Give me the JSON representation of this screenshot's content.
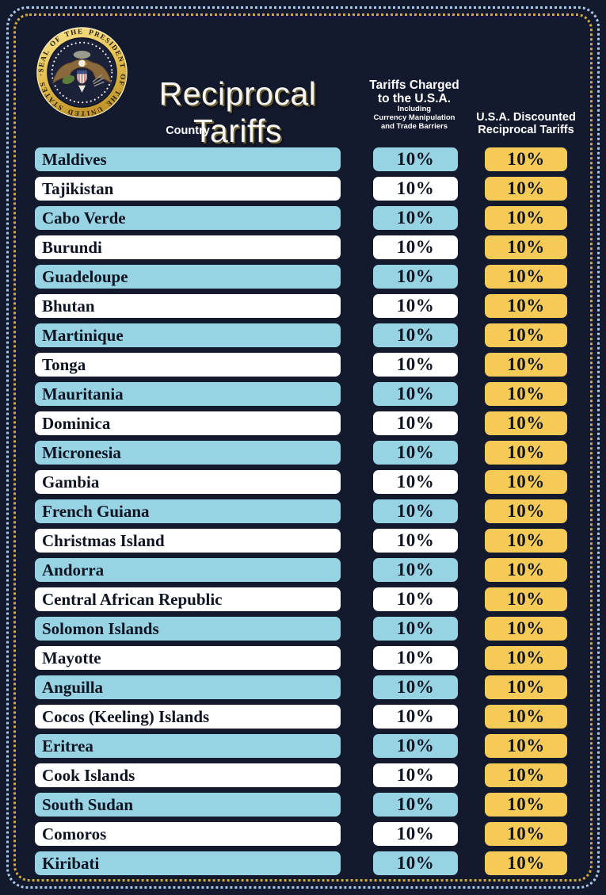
{
  "title": "Reciprocal Tariffs",
  "seal": {
    "name": "Seal of the President of the United States",
    "ring_text": "SEAL OF THE PRESIDENT OF THE UNITED STATES · · ·"
  },
  "table": {
    "header": {
      "country": "Country",
      "charged_line1": "Tariffs Charged",
      "charged_line2": "to the U.S.A.",
      "charged_sub1": "Including",
      "charged_sub2": "Currency Manipulation",
      "charged_sub3": "and Trade Barriers",
      "discounted_line1": "U.S.A. Discounted",
      "discounted_line2": "Reciprocal Tariffs"
    }
  },
  "chart_data": {
    "type": "table",
    "title": "Reciprocal Tariffs",
    "columns": [
      "Country",
      "Tariffs Charged to the U.S.A. Including Currency Manipulation and Trade Barriers",
      "U.S.A. Discounted Reciprocal Tariffs"
    ],
    "rows": [
      [
        "Maldives",
        "10%",
        "10%"
      ],
      [
        "Tajikistan",
        "10%",
        "10%"
      ],
      [
        "Cabo Verde",
        "10%",
        "10%"
      ],
      [
        "Burundi",
        "10%",
        "10%"
      ],
      [
        "Guadeloupe",
        "10%",
        "10%"
      ],
      [
        "Bhutan",
        "10%",
        "10%"
      ],
      [
        "Martinique",
        "10%",
        "10%"
      ],
      [
        "Tonga",
        "10%",
        "10%"
      ],
      [
        "Mauritania",
        "10%",
        "10%"
      ],
      [
        "Dominica",
        "10%",
        "10%"
      ],
      [
        "Micronesia",
        "10%",
        "10%"
      ],
      [
        "Gambia",
        "10%",
        "10%"
      ],
      [
        "French Guiana",
        "10%",
        "10%"
      ],
      [
        "Christmas Island",
        "10%",
        "10%"
      ],
      [
        "Andorra",
        "10%",
        "10%"
      ],
      [
        "Central African Republic",
        "10%",
        "10%"
      ],
      [
        "Solomon Islands",
        "10%",
        "10%"
      ],
      [
        "Mayotte",
        "10%",
        "10%"
      ],
      [
        "Anguilla",
        "10%",
        "10%"
      ],
      [
        "Cocos (Keeling) Islands",
        "10%",
        "10%"
      ],
      [
        "Eritrea",
        "10%",
        "10%"
      ],
      [
        "Cook Islands",
        "10%",
        "10%"
      ],
      [
        "South Sudan",
        "10%",
        "10%"
      ],
      [
        "Comoros",
        "10%",
        "10%"
      ],
      [
        "Kiribati",
        "10%",
        "10%"
      ]
    ]
  },
  "colors": {
    "background": "#141a2d",
    "row_blue": "#98d3e4",
    "row_white": "#ffffff",
    "value_gold": "#f5ca57",
    "border_outer_dots": "#aac9e9",
    "border_inner_dots": "#d2ab3f",
    "text_dark": "#0e1422",
    "text_light": "#ffffff"
  }
}
